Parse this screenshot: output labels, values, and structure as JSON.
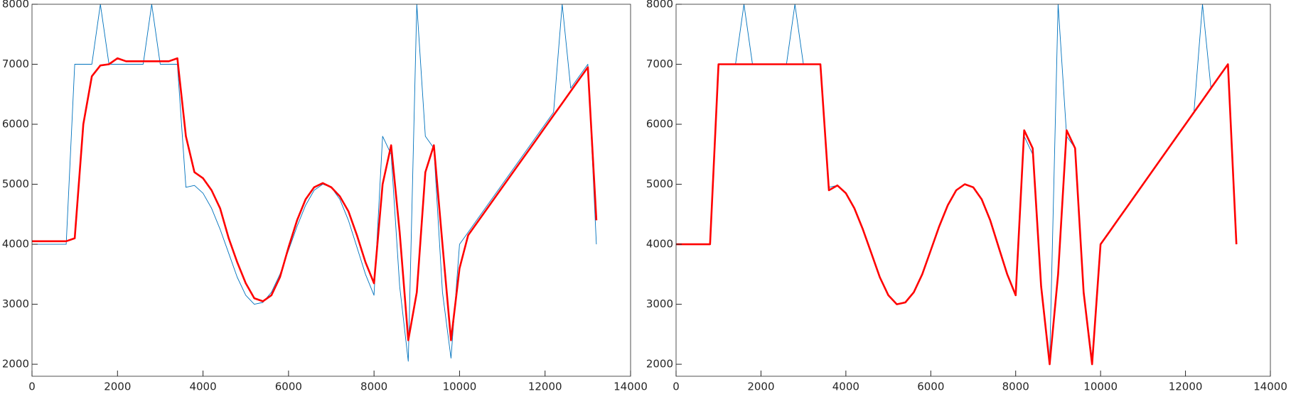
{
  "chart_data": [
    {
      "type": "line",
      "x": [
        0,
        200,
        400,
        600,
        800,
        1000,
        1200,
        1400,
        1600,
        1800,
        2000,
        2200,
        2400,
        2600,
        2800,
        3000,
        3200,
        3400,
        3600,
        3800,
        4000,
        4200,
        4400,
        4600,
        4800,
        5000,
        5200,
        5400,
        5600,
        5800,
        6000,
        6200,
        6400,
        6600,
        6800,
        7000,
        7200,
        7400,
        7600,
        7800,
        8000,
        8200,
        8400,
        8600,
        8800,
        9000,
        9200,
        9400,
        9600,
        9800,
        10000,
        10200,
        10400,
        10600,
        10800,
        11000,
        11200,
        11400,
        11600,
        11800,
        12000,
        12200,
        12400,
        12600,
        12800,
        13000,
        13200
      ],
      "series": [
        {
          "color": "#0072bd",
          "values": [
            4000,
            4000,
            4000,
            4000,
            4000,
            7000,
            7000,
            7000,
            8000,
            7000,
            7000,
            7000,
            7000,
            7000,
            8000,
            7000,
            7000,
            7000,
            4950,
            4980,
            4850,
            4600,
            4250,
            3850,
            3450,
            3150,
            3000,
            3030,
            3200,
            3500,
            3900,
            4300,
            4650,
            4900,
            5000,
            4950,
            4750,
            4400,
            3950,
            3500,
            3150,
            5800,
            5500,
            3300,
            2050,
            8000,
            5800,
            5600,
            3200,
            2100,
            4000,
            4200,
            4400,
            4600,
            4800,
            5000,
            5200,
            5400,
            5600,
            5800,
            6000,
            6200,
            8000,
            6600,
            6800,
            7000,
            4000
          ]
        },
        {
          "color": "#ff0000",
          "values": [
            4050,
            4050,
            4050,
            4050,
            4050,
            4100,
            6000,
            6800,
            6980,
            7000,
            7100,
            7050,
            7050,
            7050,
            7050,
            7050,
            7050,
            7100,
            5800,
            5200,
            5100,
            4900,
            4600,
            4100,
            3700,
            3350,
            3100,
            3050,
            3150,
            3450,
            3950,
            4400,
            4750,
            4950,
            5020,
            4950,
            4800,
            4550,
            4150,
            3700,
            3350,
            5000,
            5650,
            4200,
            2400,
            3200,
            5200,
            5650,
            4000,
            2400,
            3600,
            4150,
            4350,
            4550,
            4750,
            4950,
            5150,
            5350,
            5550,
            5750,
            5950,
            6150,
            6350,
            6550,
            6750,
            6950,
            4400
          ]
        }
      ],
      "xlim": [
        0,
        14000
      ],
      "ylim": [
        1800,
        8000
      ],
      "xticks": [
        0,
        2000,
        4000,
        6000,
        8000,
        10000,
        12000,
        14000
      ],
      "yticks": [
        2000,
        3000,
        4000,
        5000,
        6000,
        7000,
        8000
      ]
    },
    {
      "type": "line",
      "x": [
        0,
        200,
        400,
        600,
        800,
        1000,
        1200,
        1400,
        1600,
        1800,
        2000,
        2200,
        2400,
        2600,
        2800,
        3000,
        3200,
        3400,
        3600,
        3800,
        4000,
        4200,
        4400,
        4600,
        4800,
        5000,
        5200,
        5400,
        5600,
        5800,
        6000,
        6200,
        6400,
        6600,
        6800,
        7000,
        7200,
        7400,
        7600,
        7800,
        8000,
        8200,
        8400,
        8600,
        8800,
        9000,
        9200,
        9400,
        9600,
        9800,
        10000,
        10200,
        10400,
        10600,
        10800,
        11000,
        11200,
        11400,
        11600,
        11800,
        12000,
        12200,
        12400,
        12600,
        12800,
        13000,
        13200
      ],
      "series": [
        {
          "color": "#0072bd",
          "values": [
            4000,
            4000,
            4000,
            4000,
            4000,
            7000,
            7000,
            7000,
            8000,
            7000,
            7000,
            7000,
            7000,
            7000,
            8000,
            7000,
            7000,
            7000,
            4950,
            4980,
            4850,
            4600,
            4250,
            3850,
            3450,
            3150,
            3000,
            3030,
            3200,
            3500,
            3900,
            4300,
            4650,
            4900,
            5000,
            4950,
            4750,
            4400,
            3950,
            3500,
            3150,
            5800,
            5500,
            3300,
            2050,
            8000,
            5800,
            5600,
            3200,
            2100,
            4000,
            4200,
            4400,
            4600,
            4800,
            5000,
            5200,
            5400,
            5600,
            5800,
            6000,
            6200,
            8000,
            6600,
            6800,
            7000,
            4000
          ]
        },
        {
          "color": "#ff0000",
          "values": [
            4000,
            4000,
            4000,
            4000,
            4000,
            7000,
            7000,
            7000,
            7000,
            7000,
            7000,
            7000,
            7000,
            7000,
            7000,
            7000,
            7000,
            7000,
            4900,
            4980,
            4850,
            4600,
            4250,
            3850,
            3450,
            3150,
            3000,
            3030,
            3200,
            3500,
            3900,
            4300,
            4650,
            4900,
            5000,
            4950,
            4750,
            4400,
            3950,
            3500,
            3150,
            5900,
            5600,
            3300,
            2000,
            3500,
            5900,
            5600,
            3200,
            2000,
            4000,
            4200,
            4400,
            4600,
            4800,
            5000,
            5200,
            5400,
            5600,
            5800,
            6000,
            6200,
            6400,
            6600,
            6800,
            7000,
            4000
          ]
        }
      ],
      "xlim": [
        0,
        14000
      ],
      "ylim": [
        1800,
        8000
      ],
      "xticks": [
        0,
        2000,
        4000,
        6000,
        8000,
        10000,
        12000,
        14000
      ],
      "yticks": [
        2000,
        3000,
        4000,
        5000,
        6000,
        7000,
        8000
      ]
    }
  ]
}
